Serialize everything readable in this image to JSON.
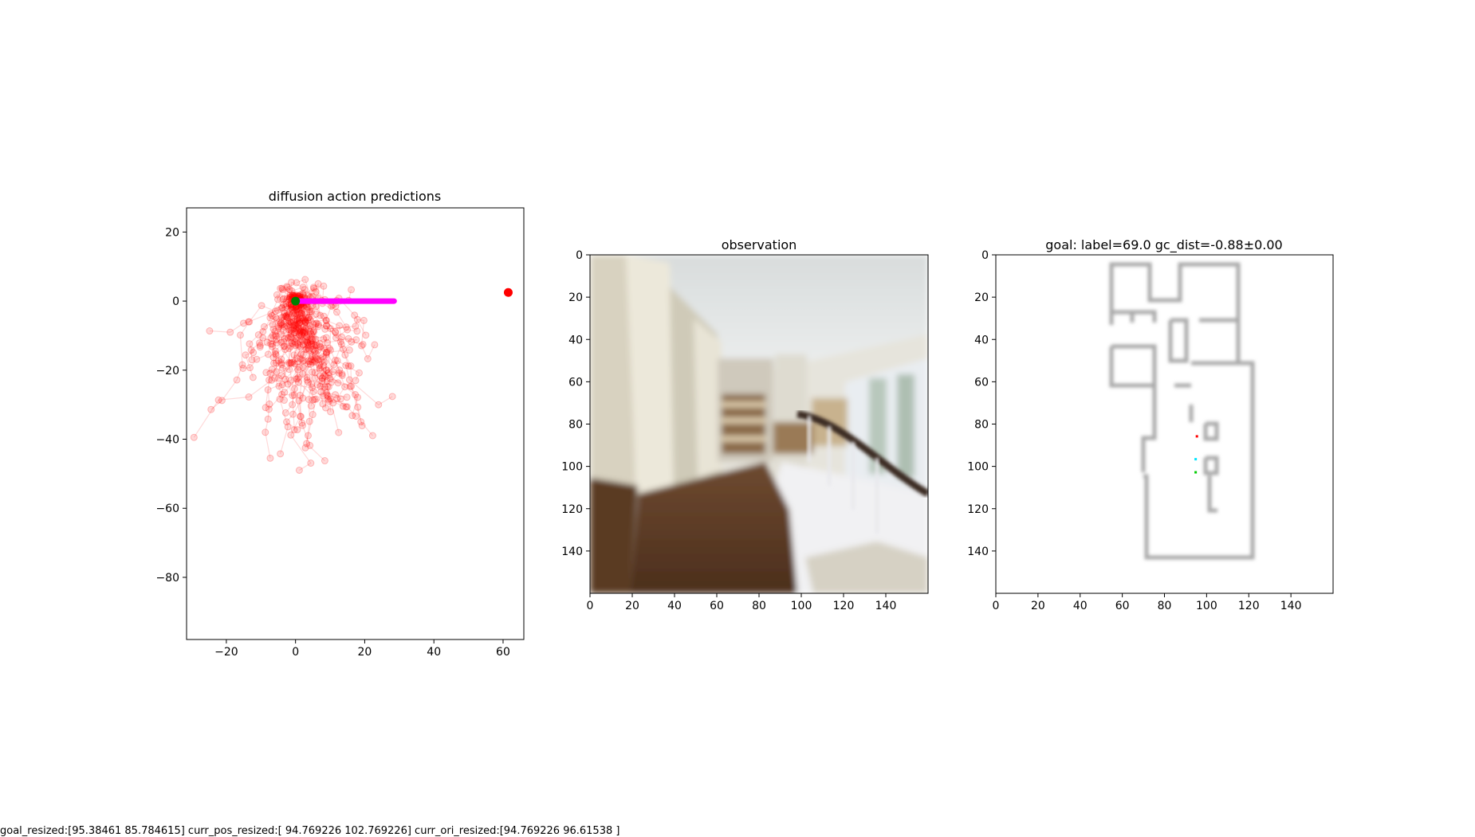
{
  "footer_text": "goal_resized:[95.38461  85.784615] curr_pos_resized:[ 94.769226 102.769226] curr_ori_resized:[94.769226 96.61538 ]",
  "chart_data": [
    {
      "type": "scatter",
      "title": "diffusion action predictions",
      "xlabel": "",
      "ylabel": "",
      "xlim": [
        -31.5,
        66
      ],
      "ylim": [
        -98,
        27
      ],
      "xticks": [
        -20,
        0,
        20,
        40,
        60
      ],
      "yticks": [
        20,
        0,
        -20,
        -40,
        -60,
        -80
      ],
      "xtick_labels": [
        "−20",
        "0",
        "20",
        "40",
        "60"
      ],
      "ytick_labels": [
        "20",
        "0",
        "−20",
        "−40",
        "−60",
        "−80"
      ],
      "grid": false,
      "series": [
        {
          "role": "sampled-trajectories",
          "color": "#ff0000",
          "alpha": 0.15,
          "count": 64,
          "steps": 8,
          "spread": [
            8,
            9
          ],
          "drift": [
            0.3,
            -1.6
          ],
          "seed": 7
        },
        {
          "role": "selected-action",
          "color": "#ff00ff",
          "x": [
            0,
            4,
            8,
            12,
            16,
            20,
            24,
            28.5
          ],
          "y": [
            0,
            0,
            0,
            0,
            0,
            0,
            0,
            0
          ]
        },
        {
          "role": "start",
          "color": "#008000",
          "x": [
            0
          ],
          "y": [
            0
          ]
        },
        {
          "role": "goal",
          "color": "#ff0000",
          "x": [
            61.5
          ],
          "y": [
            2.5
          ]
        }
      ]
    },
    {
      "type": "image",
      "title": "observation",
      "xlim": [
        0,
        160
      ],
      "ylim": [
        160,
        0
      ],
      "xticks": [
        0,
        20,
        40,
        60,
        80,
        100,
        120,
        140
      ],
      "yticks": [
        0,
        20,
        40,
        60,
        80,
        100,
        120,
        140
      ],
      "xtick_labels": [
        "0",
        "20",
        "40",
        "60",
        "80",
        "100",
        "120",
        "140"
      ],
      "ytick_labels": [
        "0",
        "20",
        "40",
        "60",
        "80",
        "100",
        "120",
        "140"
      ],
      "content": "blurred indoor hallway photo with wooden floor and staircase railing"
    },
    {
      "type": "image",
      "title": "goal: label=69.0 gc_dist=-0.88±0.00",
      "xlim": [
        0,
        160
      ],
      "ylim": [
        160,
        0
      ],
      "xticks": [
        0,
        20,
        40,
        60,
        80,
        100,
        120,
        140
      ],
      "yticks": [
        0,
        20,
        40,
        60,
        80,
        100,
        120,
        140
      ],
      "xtick_labels": [
        "0",
        "20",
        "40",
        "60",
        "80",
        "100",
        "120",
        "140"
      ],
      "ytick_labels": [
        "0",
        "20",
        "40",
        "60",
        "80",
        "100",
        "120",
        "140"
      ],
      "content": "blurred floor-plan map",
      "markers": [
        {
          "name": "goal",
          "color": "#ff0000",
          "x": 95.4,
          "y": 85.8
        },
        {
          "name": "current-orientation",
          "color": "#00e5ff",
          "x": 94.8,
          "y": 96.6
        },
        {
          "name": "current-position",
          "color": "#00cc00",
          "x": 94.8,
          "y": 102.8
        }
      ]
    }
  ]
}
